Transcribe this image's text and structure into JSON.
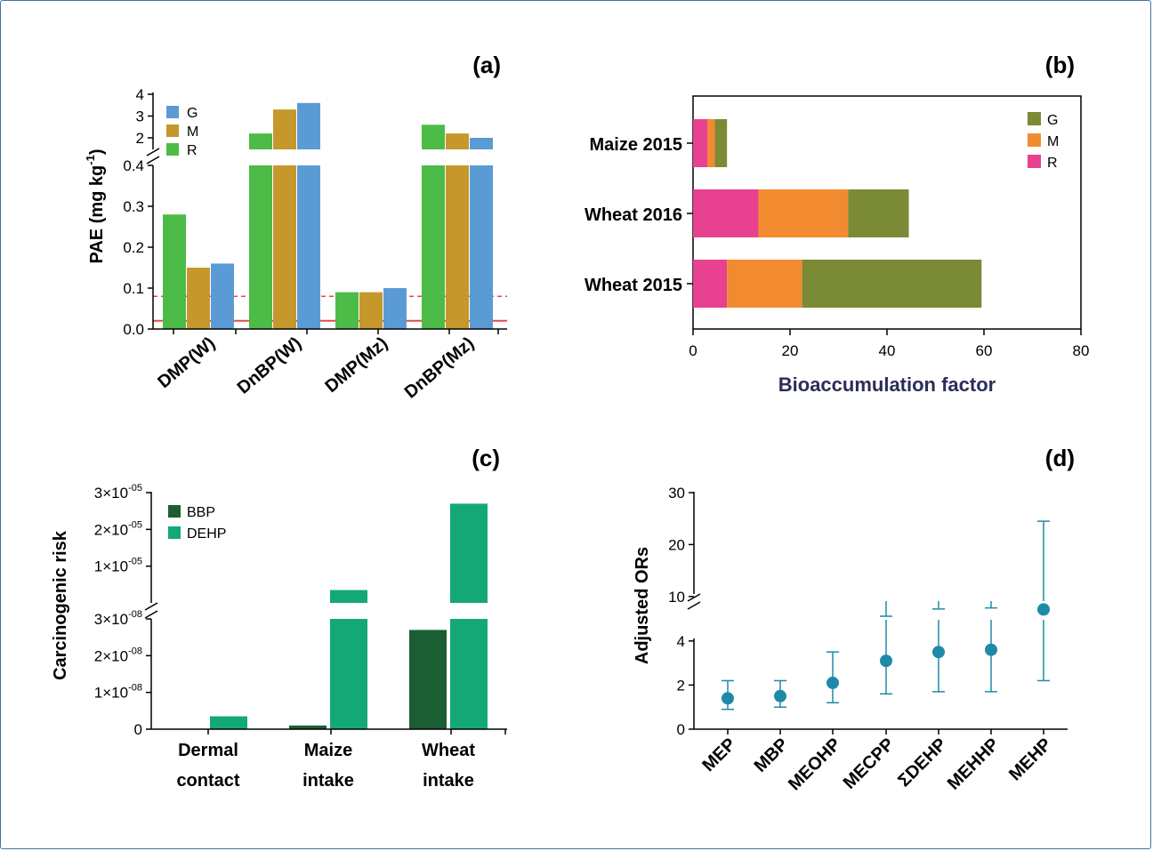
{
  "chart_data": [
    {
      "panel_label": "(a)",
      "type": "bar",
      "ylabel": "PAE (mg kg",
      "ylabel_sup": "-1",
      "ylabel_close": ")",
      "categories": [
        "DMP(W)",
        "DnBP(W)",
        "DMP(Mz)",
        "DnBP(Mz)"
      ],
      "series": [
        {
          "name": "R",
          "color": "#4cbb47",
          "values": [
            0.28,
            2.2,
            0.09,
            2.6
          ]
        },
        {
          "name": "M",
          "color": "#c6972b",
          "values": [
            0.15,
            3.3,
            0.09,
            2.2
          ]
        },
        {
          "name": "G",
          "color": "#5b9bd5",
          "values": [
            0.16,
            3.6,
            0.1,
            2.0
          ]
        }
      ],
      "legend_order": [
        "G",
        "M",
        "R"
      ],
      "y_ticks_lower": [
        "0.0",
        "0.1",
        "0.2",
        "0.3",
        "0.4"
      ],
      "y_ticks_upper": [
        "2",
        "3",
        "4"
      ],
      "ylim_lower": [
        0,
        0.4
      ],
      "ylim_upper": [
        2,
        4
      ],
      "axis_break": true,
      "reference_lines": [
        {
          "y": 0.08,
          "style": "dashed",
          "color": "#e34a4a"
        },
        {
          "y": 0.02,
          "style": "solid",
          "color": "#e34a4a"
        }
      ]
    },
    {
      "panel_label": "(b)",
      "type": "bar",
      "orientation": "horizontal",
      "stacked": true,
      "xlabel": "Bioaccumulation factor",
      "categories": [
        "Maize 2015",
        "Wheat 2016",
        "Wheat 2015"
      ],
      "series": [
        {
          "name": "R",
          "color": "#e8418f",
          "values": [
            3,
            13.5,
            7
          ]
        },
        {
          "name": "M",
          "color": "#f28a30",
          "values": [
            1.5,
            18.5,
            15.5
          ]
        },
        {
          "name": "G",
          "color": "#7a8a35",
          "values": [
            2.5,
            12.5,
            37
          ]
        }
      ],
      "legend_order": [
        "G",
        "M",
        "R"
      ],
      "x_ticks": [
        "0",
        "20",
        "40",
        "60",
        "80"
      ],
      "xlim": [
        0,
        80
      ]
    },
    {
      "panel_label": "(c)",
      "type": "bar",
      "ylabel": "Carcinogenic risk",
      "categories": [
        [
          "Dermal",
          "contact"
        ],
        [
          "Maize",
          "intake"
        ],
        [
          "Wheat",
          "intake"
        ]
      ],
      "series": [
        {
          "name": "BBP",
          "color": "#1b5e34",
          "values": [
            0,
            1e-09,
            2.7e-08
          ]
        },
        {
          "name": "DEHP",
          "color": "#14a876",
          "values": [
            3.5e-09,
            3.5e-06,
            2.7e-05
          ]
        }
      ],
      "y_ticks_lower": [
        {
          "base": "0",
          "exp": ""
        },
        {
          "base": "1×10",
          "exp": "-08"
        },
        {
          "base": "2×10",
          "exp": "-08"
        },
        {
          "base": "3×10",
          "exp": "-08"
        }
      ],
      "y_ticks_upper": [
        {
          "base": "1×10",
          "exp": "-05"
        },
        {
          "base": "2×10",
          "exp": "-05"
        },
        {
          "base": "3×10",
          "exp": "-05"
        }
      ],
      "ylim_lower": [
        0,
        3e-08
      ],
      "ylim_upper": [
        0,
        3e-05
      ],
      "axis_break": true
    },
    {
      "panel_label": "(d)",
      "type": "scatter",
      "error_bars": true,
      "ylabel": "Adjusted ORs",
      "categories": [
        "MEP",
        "MBP",
        "MEOHP",
        "MECPP",
        "ΣDEHP",
        "MEHHP",
        "MEHP"
      ],
      "values": [
        1.4,
        1.5,
        2.1,
        3.1,
        3.5,
        3.6,
        7.5
      ],
      "ci_low": [
        0.9,
        1.0,
        1.2,
        1.6,
        1.7,
        1.7,
        2.2
      ],
      "ci_high": [
        2.2,
        2.2,
        3.5,
        6.2,
        7.6,
        7.8,
        24.5
      ],
      "color": "#1f8aa8",
      "y_ticks_lower": [
        "0",
        "2",
        "4"
      ],
      "y_ticks_upper": [
        "10",
        "20",
        "30"
      ],
      "ylim_lower": [
        0,
        5
      ],
      "ylim_upper": [
        5,
        30
      ],
      "axis_break": true
    }
  ]
}
